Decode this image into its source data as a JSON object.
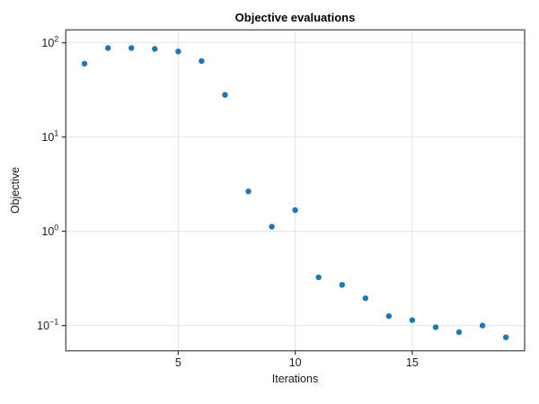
{
  "chart_data": {
    "type": "scatter",
    "title": "Objective evaluations",
    "xlabel": "Iterations",
    "ylabel": "Objective",
    "xscale": "linear",
    "yscale": "log",
    "xlim": [
      0.2,
      19.8
    ],
    "ylim": [
      0.054,
      137
    ],
    "grid": true,
    "legend_position": "none",
    "series": [
      {
        "name": "objective",
        "x": [
          1,
          2,
          3,
          4,
          5,
          6,
          7,
          8,
          9,
          10,
          11,
          12,
          13,
          14,
          15,
          16,
          17,
          18,
          19
        ],
        "y": [
          60,
          88,
          88,
          86,
          81,
          64,
          28,
          2.65,
          1.12,
          1.68,
          0.325,
          0.27,
          0.195,
          0.126,
          0.114,
          0.096,
          0.085,
          0.1,
          0.075
        ]
      }
    ],
    "xticks": [
      {
        "value": 5,
        "label": "5"
      },
      {
        "value": 10,
        "label": "10"
      },
      {
        "value": 15,
        "label": "15"
      }
    ],
    "yticks": [
      {
        "value": 100,
        "base": "10",
        "exp": "2"
      },
      {
        "value": 10,
        "base": "10",
        "exp": "1"
      },
      {
        "value": 1,
        "base": "10",
        "exp": "0"
      },
      {
        "value": 0.1,
        "base": "10",
        "exp": "−1"
      }
    ],
    "colors": {
      "marker": "#1f77b4",
      "grid": "#e4e4e4",
      "spine": "#5b5b5b",
      "tick": "#333333",
      "text": "#1a1a1a",
      "background": "#ffffff"
    }
  }
}
